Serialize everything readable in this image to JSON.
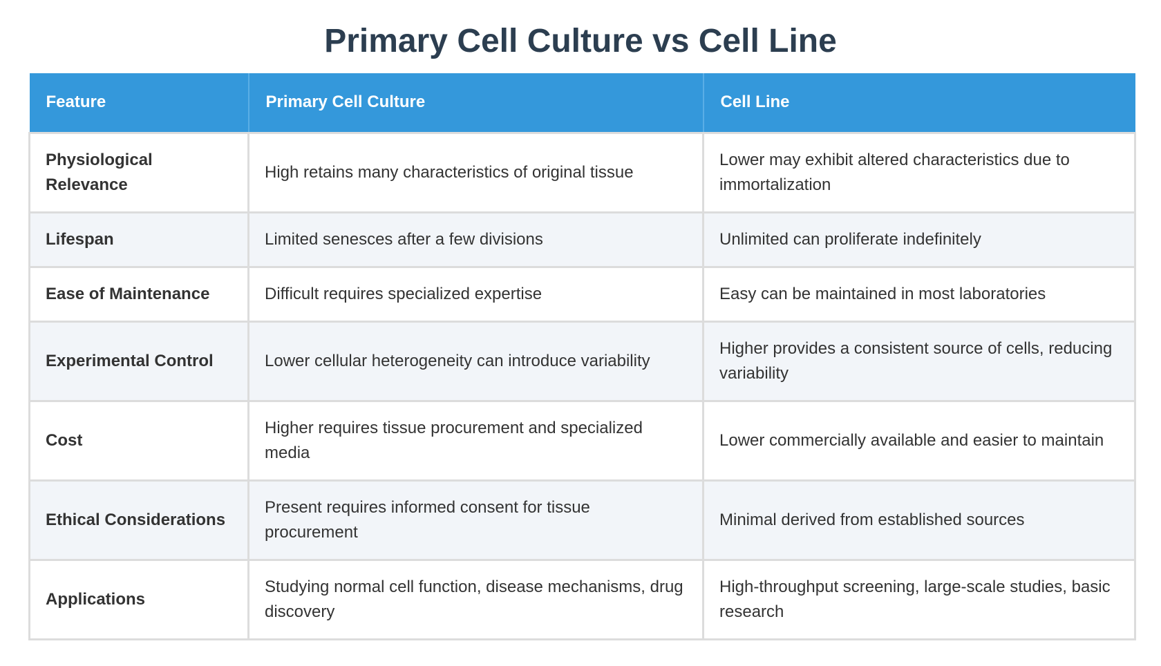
{
  "title": "Primary Cell Culture vs Cell Line",
  "table": {
    "headers": [
      "Feature",
      "Primary Cell Culture",
      "Cell Line"
    ],
    "rows": [
      {
        "feature": "Physiological Relevance",
        "primary": "High retains many characteristics of original tissue",
        "cell_line": "Lower may exhibit altered characteristics due to immortalization"
      },
      {
        "feature": "Lifespan",
        "primary": "Limited senesces after a few divisions",
        "cell_line": "Unlimited can proliferate indefinitely"
      },
      {
        "feature": "Ease of Maintenance",
        "primary": "Difficult requires specialized expertise",
        "cell_line": "Easy can be maintained in most laboratories"
      },
      {
        "feature": "Experimental Control",
        "primary": "Lower cellular heterogeneity can introduce variability",
        "cell_line": "Higher provides a consistent source of cells, reducing variability"
      },
      {
        "feature": "Cost",
        "primary": "Higher requires tissue procurement and specialized media",
        "cell_line": "Lower commercially available and easier to maintain"
      },
      {
        "feature": "Ethical Considerations",
        "primary": "Present requires informed consent for tissue procurement",
        "cell_line": "Minimal derived from established sources"
      },
      {
        "feature": "Applications",
        "primary": "Studying normal cell function, disease mechanisms, drug discovery",
        "cell_line": "High-throughput screening, large-scale studies, basic research"
      }
    ]
  }
}
